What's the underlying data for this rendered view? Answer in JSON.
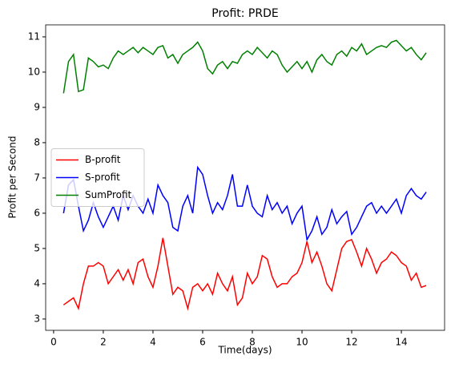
{
  "chart_data": {
    "type": "line",
    "title": "Profit: PRDE",
    "x_label": "Time(days)",
    "y_label": "Profit per Second",
    "x": [
      0.4,
      0.6,
      0.8,
      1.0,
      1.2,
      1.4,
      1.6,
      1.8,
      2.0,
      2.2,
      2.4,
      2.6,
      2.8,
      3.0,
      3.2,
      3.4,
      3.6,
      3.8,
      4.0,
      4.2,
      4.4,
      4.6,
      4.8,
      5.0,
      5.2,
      5.4,
      5.6,
      5.8,
      6.0,
      6.2,
      6.4,
      6.6,
      6.8,
      7.0,
      7.2,
      7.4,
      7.6,
      7.8,
      8.0,
      8.2,
      8.4,
      8.6,
      8.8,
      9.0,
      9.2,
      9.4,
      9.6,
      9.8,
      10.0,
      10.2,
      10.4,
      10.6,
      10.8,
      11.0,
      11.2,
      11.4,
      11.6,
      11.8,
      12.0,
      12.2,
      12.4,
      12.6,
      12.8,
      13.0,
      13.2,
      13.4,
      13.6,
      13.8,
      14.0,
      14.2,
      14.4,
      14.6,
      14.8,
      15.0
    ],
    "series": [
      {
        "name": "B-profit",
        "color": "#ff0000",
        "values": [
          3.4,
          3.5,
          3.6,
          3.3,
          4.0,
          4.5,
          4.5,
          4.6,
          4.5,
          4.0,
          4.2,
          4.4,
          4.1,
          4.4,
          4.0,
          4.6,
          4.7,
          4.2,
          3.9,
          4.5,
          5.3,
          4.5,
          3.7,
          3.9,
          3.8,
          3.3,
          3.9,
          4.0,
          3.8,
          4.0,
          3.7,
          4.3,
          4.0,
          3.8,
          4.2,
          3.4,
          3.6,
          4.3,
          4.0,
          4.2,
          4.8,
          4.7,
          4.2,
          3.9,
          4.0,
          4.0,
          4.2,
          4.3,
          4.6,
          5.2,
          4.6,
          4.9,
          4.5,
          4.0,
          3.8,
          4.4,
          5.0,
          5.2,
          5.25,
          4.9,
          4.5,
          5.0,
          4.7,
          4.3,
          4.6,
          4.7,
          4.9,
          4.8,
          4.6,
          4.5,
          4.1,
          4.3,
          3.9,
          3.95
        ]
      },
      {
        "name": "S-profit",
        "color": "#0000ff",
        "values": [
          6.0,
          6.8,
          6.95,
          6.2,
          5.5,
          5.8,
          6.3,
          5.9,
          5.6,
          5.9,
          6.2,
          5.8,
          6.5,
          6.1,
          6.5,
          6.2,
          6.0,
          6.4,
          6.0,
          6.8,
          6.5,
          6.3,
          5.6,
          5.5,
          6.2,
          6.5,
          6.0,
          7.3,
          7.1,
          6.5,
          6.0,
          6.3,
          6.1,
          6.5,
          7.1,
          6.2,
          6.2,
          6.8,
          6.2,
          6.0,
          5.9,
          6.5,
          6.1,
          6.3,
          6.0,
          6.2,
          5.7,
          6.0,
          6.2,
          5.25,
          5.5,
          5.9,
          5.4,
          5.6,
          6.1,
          5.7,
          5.9,
          6.05,
          5.4,
          5.6,
          5.9,
          6.2,
          6.3,
          6.0,
          6.2,
          6.0,
          6.2,
          6.4,
          6.0,
          6.5,
          6.7,
          6.5,
          6.4,
          6.6
        ]
      },
      {
        "name": "SumProfit",
        "color": "#008000",
        "values": [
          9.4,
          10.3,
          10.5,
          9.45,
          9.5,
          10.4,
          10.3,
          10.15,
          10.2,
          10.1,
          10.4,
          10.6,
          10.5,
          10.6,
          10.7,
          10.55,
          10.7,
          10.6,
          10.5,
          10.7,
          10.75,
          10.4,
          10.5,
          10.25,
          10.5,
          10.6,
          10.7,
          10.85,
          10.6,
          10.1,
          9.95,
          10.2,
          10.3,
          10.1,
          10.3,
          10.25,
          10.5,
          10.6,
          10.5,
          10.7,
          10.55,
          10.4,
          10.6,
          10.5,
          10.2,
          10.0,
          10.15,
          10.3,
          10.1,
          10.3,
          10.0,
          10.35,
          10.5,
          10.3,
          10.2,
          10.5,
          10.6,
          10.45,
          10.7,
          10.6,
          10.8,
          10.5,
          10.6,
          10.7,
          10.75,
          10.7,
          10.85,
          10.9,
          10.75,
          10.6,
          10.7,
          10.5,
          10.35,
          10.55
        ]
      }
    ],
    "xlim": [
      -0.32,
      15.74
    ],
    "xticks": [
      0,
      2,
      4,
      6,
      8,
      10,
      12,
      14
    ],
    "ylim": [
      2.68,
      11.34
    ],
    "yticks": [
      3,
      4,
      5,
      6,
      7,
      8,
      9,
      10,
      11
    ],
    "grid": false,
    "legend": "center left"
  }
}
